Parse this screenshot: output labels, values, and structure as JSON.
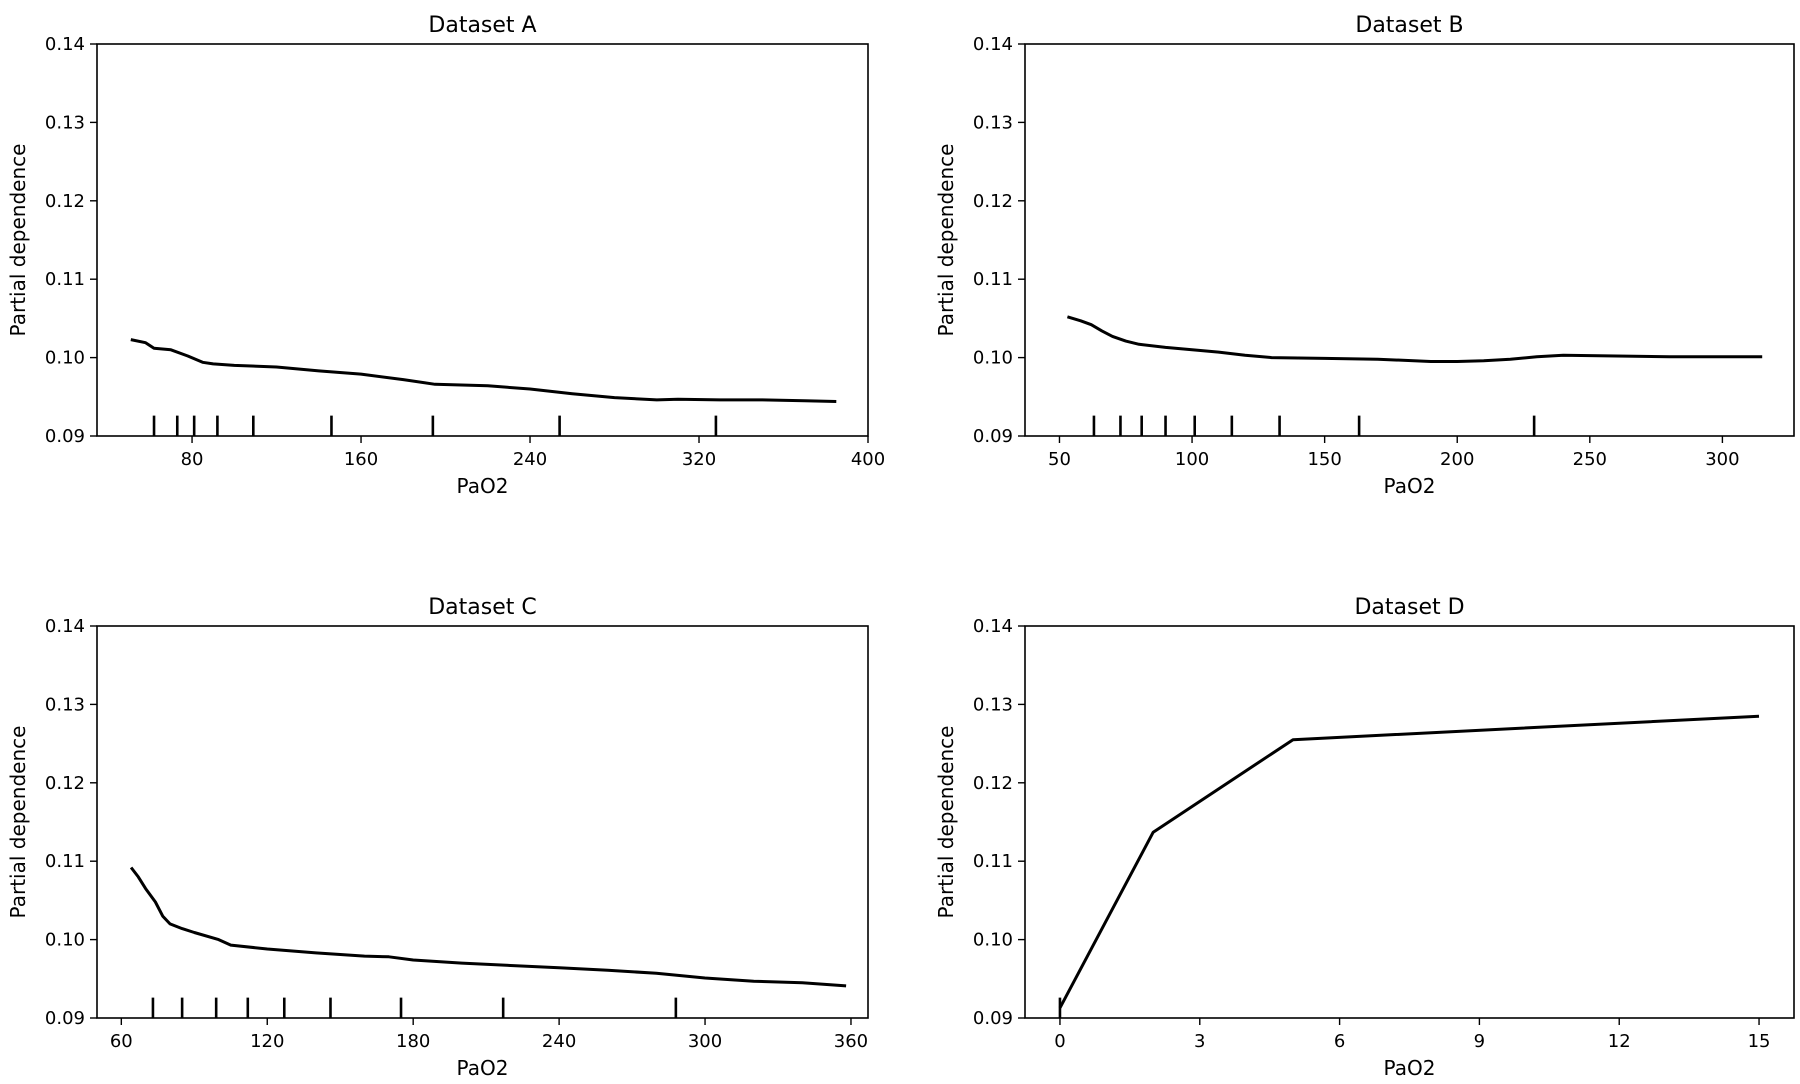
{
  "chart_data": [
    {
      "type": "line",
      "title": "Dataset A",
      "xlabel": "PaO2",
      "ylabel": "Partial dependence",
      "xlim": [
        35,
        400
      ],
      "ylim": [
        0.09,
        0.14
      ],
      "xticks": [
        80,
        160,
        240,
        320,
        400
      ],
      "xtick_labels": [
        "80",
        "160",
        "240",
        "320",
        "400"
      ],
      "yticks": [
        0.09,
        0.1,
        0.11,
        0.12,
        0.13,
        0.14
      ],
      "ytick_labels": [
        "0.09",
        "0.10",
        "0.11",
        "0.12",
        "0.13",
        "0.14"
      ],
      "grid": false,
      "rug": [
        62,
        73,
        81,
        92,
        109,
        146,
        194,
        254,
        328
      ],
      "x": [
        51,
        58,
        62,
        70,
        78,
        85,
        90,
        100,
        120,
        140,
        160,
        180,
        195,
        220,
        240,
        260,
        280,
        300,
        310,
        330,
        350,
        370,
        385
      ],
      "y": [
        0.1023,
        0.1019,
        0.1012,
        0.101,
        0.1002,
        0.0994,
        0.0992,
        0.099,
        0.0988,
        0.0983,
        0.0979,
        0.0972,
        0.0966,
        0.0964,
        0.096,
        0.0954,
        0.0949,
        0.0946,
        0.0947,
        0.0946,
        0.0946,
        0.0945,
        0.0944
      ]
    },
    {
      "type": "line",
      "title": "Dataset B",
      "xlabel": "PaO2",
      "ylabel": "Partial dependence",
      "xlim": [
        37,
        327
      ],
      "ylim": [
        0.09,
        0.14
      ],
      "xticks": [
        50,
        100,
        150,
        200,
        250,
        300
      ],
      "xtick_labels": [
        "50",
        "100",
        "150",
        "200",
        "250",
        "300"
      ],
      "yticks": [
        0.09,
        0.1,
        0.11,
        0.12,
        0.13,
        0.14
      ],
      "ytick_labels": [
        "0.09",
        "0.10",
        "0.11",
        "0.12",
        "0.13",
        "0.14"
      ],
      "grid": false,
      "rug": [
        63,
        73,
        81,
        90,
        101,
        115,
        133,
        163,
        229
      ],
      "x": [
        53,
        58,
        62,
        66,
        70,
        75,
        80,
        90,
        100,
        110,
        120,
        130,
        150,
        170,
        190,
        200,
        210,
        220,
        230,
        240,
        260,
        280,
        300,
        315
      ],
      "y": [
        0.1052,
        0.1047,
        0.1042,
        0.1034,
        0.1027,
        0.1021,
        0.1017,
        0.1013,
        0.101,
        0.1007,
        0.1003,
        0.1,
        0.0999,
        0.0998,
        0.0995,
        0.0995,
        0.0996,
        0.0998,
        0.1001,
        0.1003,
        0.1002,
        0.1001,
        0.1001,
        0.1001
      ]
    },
    {
      "type": "line",
      "title": "Dataset C",
      "xlabel": "PaO2",
      "ylabel": "Partial dependence",
      "xlim": [
        50,
        367
      ],
      "ylim": [
        0.09,
        0.14
      ],
      "xticks": [
        60,
        120,
        180,
        240,
        300,
        360
      ],
      "xtick_labels": [
        "60",
        "120",
        "180",
        "240",
        "300",
        "360"
      ],
      "yticks": [
        0.09,
        0.1,
        0.11,
        0.12,
        0.13,
        0.14
      ],
      "ytick_labels": [
        "0.09",
        "0.10",
        "0.11",
        "0.12",
        "0.13",
        "0.14"
      ],
      "grid": false,
      "rug": [
        73,
        85,
        99,
        112,
        127,
        146,
        175,
        217,
        288
      ],
      "x": [
        64,
        67,
        70,
        74,
        77,
        80,
        85,
        90,
        100,
        105,
        120,
        140,
        160,
        170,
        180,
        200,
        220,
        240,
        260,
        280,
        300,
        320,
        340,
        358
      ],
      "y": [
        0.1092,
        0.108,
        0.1065,
        0.1048,
        0.103,
        0.102,
        0.1014,
        0.1009,
        0.1,
        0.0993,
        0.0988,
        0.0983,
        0.0979,
        0.0978,
        0.0974,
        0.097,
        0.0967,
        0.0964,
        0.0961,
        0.0957,
        0.0951,
        0.0947,
        0.0945,
        0.0941
      ]
    },
    {
      "type": "line",
      "title": "Dataset D",
      "xlabel": "PaO2",
      "ylabel": "Partial dependence",
      "xlim": [
        -0.75,
        15.75
      ],
      "ylim": [
        0.09,
        0.14
      ],
      "xticks": [
        0,
        3,
        6,
        9,
        12,
        15
      ],
      "xtick_labels": [
        "0",
        "3",
        "6",
        "9",
        "12",
        "15"
      ],
      "yticks": [
        0.09,
        0.1,
        0.11,
        0.12,
        0.13,
        0.14
      ],
      "ytick_labels": [
        "0.09",
        "0.10",
        "0.11",
        "0.12",
        "0.13",
        "0.14"
      ],
      "grid": false,
      "rug": [
        0
      ],
      "x": [
        0,
        2,
        5,
        15
      ],
      "y": [
        0.0913,
        0.1137,
        0.1255,
        0.1285
      ]
    }
  ]
}
